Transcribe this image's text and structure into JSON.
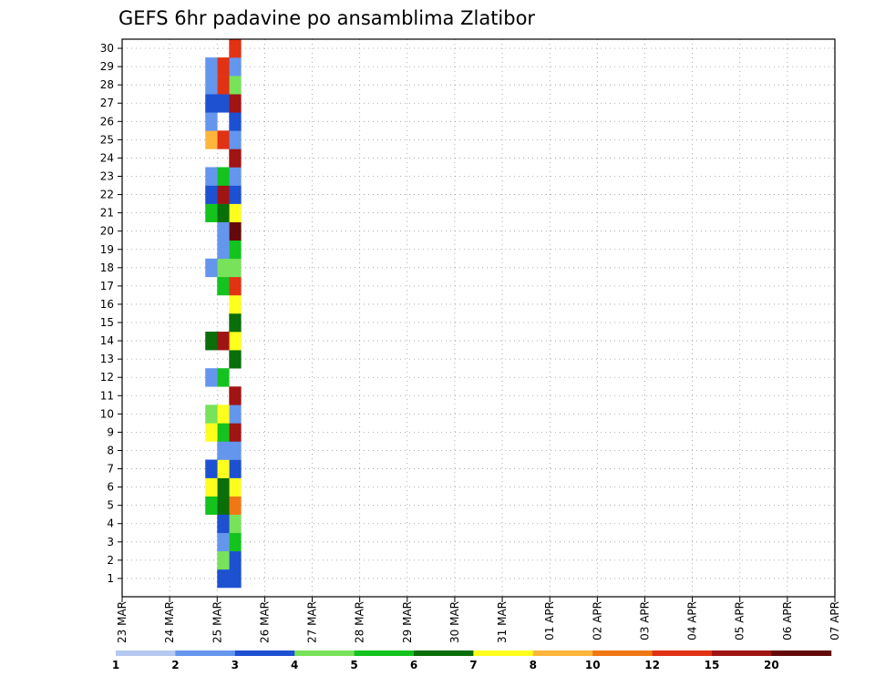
{
  "chart_data": {
    "type": "heatmap",
    "title": "GEFS 6hr padavine po ansamblima Zlatibor",
    "xlabel": "",
    "ylabel": "",
    "x_ticks": [
      "23 MAR",
      "24 MAR",
      "25 MAR",
      "26 MAR",
      "27 MAR",
      "28 MAR",
      "29 MAR",
      "30 MAR",
      "31 MAR",
      "01 APR",
      "02 APR",
      "03 APR",
      "04 APR",
      "05 APR",
      "06 APR",
      "07 APR"
    ],
    "y_ticks": [
      1,
      2,
      3,
      4,
      5,
      6,
      7,
      8,
      9,
      10,
      11,
      12,
      13,
      14,
      15,
      16,
      17,
      18,
      19,
      20,
      21,
      22,
      23,
      24,
      25,
      26,
      27,
      28,
      29,
      30
    ],
    "x_step_hours": 6,
    "grid": "dotted",
    "colorbar": {
      "labels": [
        "1",
        "2",
        "3",
        "4",
        "5",
        "6",
        "7",
        "8",
        "10",
        "12",
        "15",
        "20"
      ],
      "colors": [
        "#b4c8f0",
        "#6496ee",
        "#1e50d2",
        "#78e25a",
        "#14c31e",
        "#0a6e0a",
        "#ffff1e",
        "#ffb43c",
        "#f07814",
        "#e13214",
        "#a01414",
        "#640a0a"
      ]
    },
    "cells": [
      [
        "25 MAR 06",
        0,
        2
      ],
      [
        "25 MAR 06",
        1,
        2
      ],
      [
        "25 MAR 06",
        2,
        4
      ],
      [
        "25 MAR 06",
        3,
        3
      ],
      [
        "25 MAR 06",
        4,
        8
      ],
      [
        "25 MAR 06",
        5,
        6
      ],
      [
        "25 MAR 06",
        6,
        2
      ],
      [
        "25 MAR 06",
        7,
        1
      ],
      [
        "25 MAR 06",
        8,
        10
      ],
      [
        "25 MAR 06",
        9,
        1
      ],
      [
        "25 MAR 06",
        10,
        10
      ],
      [
        "25 MAR 06",
        12,
        5
      ],
      [
        "25 MAR 06",
        13,
        6
      ],
      [
        "25 MAR 06",
        14,
        5
      ],
      [
        "25 MAR 06",
        15,
        6
      ],
      [
        "25 MAR 06",
        16,
        9
      ],
      [
        "25 MAR 06",
        17,
        3
      ],
      [
        "25 MAR 06",
        18,
        4
      ],
      [
        "25 MAR 06",
        19,
        11
      ],
      [
        "25 MAR 06",
        20,
        6
      ],
      [
        "25 MAR 06",
        21,
        2
      ],
      [
        "25 MAR 06",
        22,
        1
      ],
      [
        "25 MAR 06",
        23,
        10
      ],
      [
        "25 MAR 06",
        24,
        1
      ],
      [
        "25 MAR 06",
        25,
        2
      ],
      [
        "25 MAR 06",
        26,
        10
      ],
      [
        "25 MAR 06",
        27,
        3
      ],
      [
        "25 MAR 06",
        28,
        1
      ],
      [
        "25 MAR 06",
        29,
        9
      ],
      [
        "25 MAR 00",
        0,
        2
      ],
      [
        "25 MAR 00",
        1,
        3
      ],
      [
        "25 MAR 00",
        2,
        1
      ],
      [
        "25 MAR 00",
        3,
        2
      ],
      [
        "25 MAR 00",
        4,
        5
      ],
      [
        "25 MAR 00",
        5,
        5
      ],
      [
        "25 MAR 00",
        6,
        6
      ],
      [
        "25 MAR 00",
        7,
        1
      ],
      [
        "25 MAR 00",
        8,
        4
      ],
      [
        "25 MAR 00",
        9,
        6
      ],
      [
        "25 MAR 00",
        11,
        4
      ],
      [
        "25 MAR 00",
        13,
        10
      ],
      [
        "25 MAR 00",
        16,
        4
      ],
      [
        "25 MAR 00",
        17,
        3
      ],
      [
        "25 MAR 00",
        18,
        1
      ],
      [
        "25 MAR 00",
        19,
        1
      ],
      [
        "25 MAR 00",
        20,
        5
      ],
      [
        "25 MAR 00",
        21,
        10
      ],
      [
        "25 MAR 00",
        22,
        4
      ],
      [
        "25 MAR 00",
        24,
        9
      ],
      [
        "25 MAR 00",
        26,
        2
      ],
      [
        "25 MAR 00",
        27,
        9
      ],
      [
        "25 MAR 00",
        28,
        9
      ],
      [
        "24 MAR 18",
        4,
        4
      ],
      [
        "24 MAR 18",
        5,
        6
      ],
      [
        "24 MAR 18",
        6,
        2
      ],
      [
        "24 MAR 18",
        8,
        6
      ],
      [
        "24 MAR 18",
        9,
        3
      ],
      [
        "24 MAR 18",
        11,
        1
      ],
      [
        "24 MAR 18",
        13,
        5
      ],
      [
        "24 MAR 18",
        17,
        1
      ],
      [
        "24 MAR 18",
        20,
        4
      ],
      [
        "24 MAR 18",
        21,
        2
      ],
      [
        "24 MAR 18",
        22,
        1
      ],
      [
        "24 MAR 18",
        24,
        7
      ],
      [
        "24 MAR 18",
        25,
        1
      ],
      [
        "24 MAR 18",
        26,
        2
      ],
      [
        "24 MAR 18",
        27,
        1
      ],
      [
        "24 MAR 18",
        28,
        1
      ]
    ]
  }
}
